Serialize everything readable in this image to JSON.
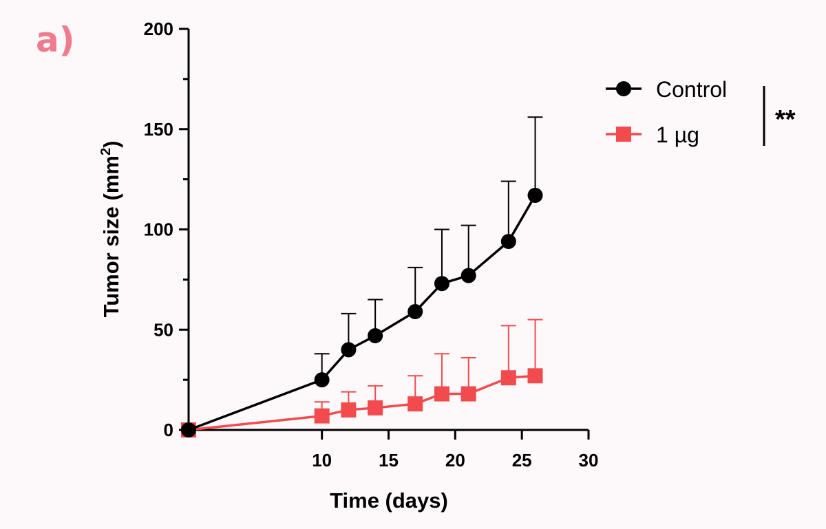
{
  "panel_label": "a)",
  "colors": {
    "panel_label": "#f07a8e",
    "control": "#000000",
    "treated": "#f24b4e",
    "axis": "#000000"
  },
  "chart_data": {
    "type": "line",
    "xlabel": "Time (days)",
    "ylabel": "Tumor size (mm²)",
    "ylabel_base": "Tumor size (mm",
    "ylabel_sup": "2",
    "ylabel_end": ")",
    "xlim": [
      0,
      30
    ],
    "ylim": [
      0,
      200
    ],
    "xticks": [
      10,
      15,
      20,
      25,
      30
    ],
    "yticks": [
      0,
      50,
      100,
      150,
      200
    ],
    "y_minor_step": 25,
    "grid": false,
    "legend_position": "top-right",
    "significance": "**",
    "series": [
      {
        "name": "Control",
        "marker": "circle",
        "color": "#000000",
        "x": [
          0,
          10,
          12,
          14,
          17,
          19,
          21,
          24,
          26
        ],
        "y": [
          0,
          25,
          40,
          47,
          59,
          73,
          77,
          94,
          117
        ],
        "error_upper": [
          0,
          13,
          18,
          18,
          22,
          27,
          25,
          30,
          39
        ]
      },
      {
        "name": "1 µg",
        "marker": "square",
        "color": "#f24b4e",
        "x": [
          0,
          10,
          12,
          14,
          17,
          19,
          21,
          24,
          26
        ],
        "y": [
          0,
          7,
          10,
          11,
          13,
          18,
          18,
          26,
          27
        ],
        "error_upper": [
          0,
          7,
          9,
          11,
          14,
          20,
          18,
          26,
          28
        ]
      }
    ]
  }
}
